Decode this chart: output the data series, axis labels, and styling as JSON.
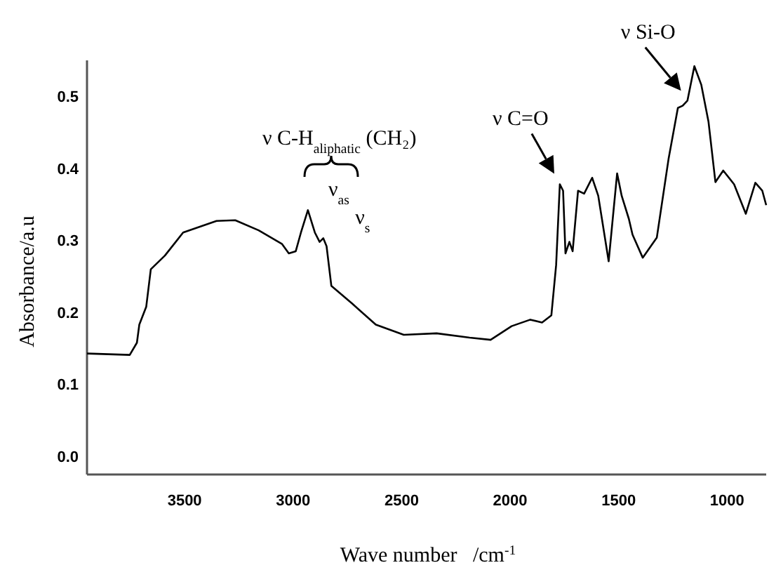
{
  "chart_data": {
    "type": "line",
    "xlabel": "Wave number   /cm$^{-1}$",
    "ylabel": "Absorbance/a.u",
    "x": [
      3950,
      3753,
      3720,
      3709,
      3677,
      3656,
      3591,
      3507,
      3353,
      3267,
      3159,
      3051,
      3020,
      2988,
      2964,
      2932,
      2900,
      2878,
      2861,
      2846,
      2824,
      2727,
      2619,
      2490,
      2339,
      2187,
      2090,
      1993,
      1907,
      1853,
      1810,
      1788,
      1771,
      1756,
      1745,
      1727,
      1712,
      1687,
      1659,
      1622,
      1594,
      1546,
      1525,
      1507,
      1486,
      1453,
      1436,
      1389,
      1324,
      1270,
      1227,
      1205,
      1183,
      1151,
      1119,
      1086,
      1054,
      1018,
      968,
      914,
      870,
      838,
      820
    ],
    "series": [
      {
        "color": "#000000",
        "values": [
          0.143,
          0.141,
          0.158,
          0.183,
          0.208,
          0.26,
          0.279,
          0.311,
          0.327,
          0.328,
          0.314,
          0.295,
          0.282,
          0.285,
          0.311,
          0.342,
          0.311,
          0.298,
          0.303,
          0.292,
          0.237,
          0.212,
          0.183,
          0.169,
          0.171,
          0.165,
          0.162,
          0.181,
          0.19,
          0.186,
          0.196,
          0.266,
          0.378,
          0.369,
          0.282,
          0.298,
          0.285,
          0.369,
          0.365,
          0.387,
          0.362,
          0.271,
          0.337,
          0.393,
          0.362,
          0.33,
          0.308,
          0.276,
          0.304,
          0.413,
          0.484,
          0.487,
          0.494,
          0.542,
          0.516,
          0.465,
          0.381,
          0.397,
          0.378,
          0.337,
          0.38,
          0.369,
          0.349
        ]
      }
    ],
    "xlim": [
      3950,
      820
    ],
    "ylim": [
      -0.025,
      0.55
    ],
    "xticks": [
      3500,
      3000,
      2500,
      2000,
      1500,
      1000
    ],
    "yticks": [
      {
        "value": 0,
        "label": "0.0"
      },
      {
        "value": 0.1,
        "label": "0.1"
      },
      {
        "value": 0.2,
        "label": "0.2"
      },
      {
        "value": 0.3,
        "label": "0.3"
      },
      {
        "value": 0.4,
        "label": "0.4"
      },
      {
        "value": 0.5,
        "label": "0.5"
      }
    ],
    "annotations": [
      "ν C-H$_{aliphatic}$ (CH₂)",
      {
        "text": "ν$_{as}$",
        "x": 2932,
        "y": 0.342
      },
      {
        "text": "ν$_{s}$",
        "x": 2861,
        "y": 0.303
      },
      {
        "text": "ν C=O",
        "x": 1771,
        "y": 0.378
      },
      {
        "text": "ν Si-O",
        "x": 1183,
        "y": 0.494
      }
    ]
  }
}
